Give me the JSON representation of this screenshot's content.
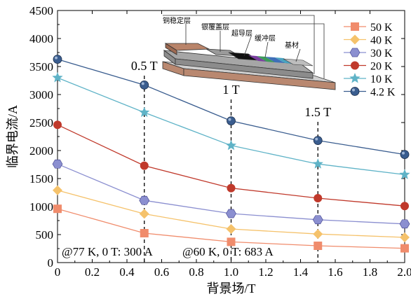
{
  "chart_data": {
    "type": "line",
    "title": "",
    "xlabel": "背景场/T",
    "ylabel": "临界电流/A",
    "xlim": [
      0,
      2.0
    ],
    "ylim": [
      0,
      4500
    ],
    "x_ticks": [
      "0",
      "0.2",
      "0.4",
      "0.6",
      "0.8",
      "1.0",
      "1.2",
      "1.4",
      "1.6",
      "1.8",
      "2.0"
    ],
    "y_ticks": [
      "0",
      "500",
      "1000",
      "1500",
      "2000",
      "2500",
      "3000",
      "3500",
      "4000",
      "4500"
    ],
    "x": [
      0,
      0.5,
      1.0,
      1.5,
      2.0
    ],
    "series": [
      {
        "name": "50 K",
        "marker": "square",
        "color": "#f08c6c",
        "values": [
          960,
          525,
          370,
          300,
          255
        ]
      },
      {
        "name": "40 K",
        "marker": "diamond",
        "color": "#f5c26b",
        "values": [
          1290,
          870,
          600,
          510,
          450
        ]
      },
      {
        "name": "30 K",
        "marker": "hexagon",
        "color": "#8b8fd0",
        "values": [
          1760,
          1110,
          875,
          765,
          690
        ]
      },
      {
        "name": "20 K",
        "marker": "circle",
        "color": "#c0392b",
        "values": [
          2460,
          1730,
          1330,
          1150,
          1010
        ]
      },
      {
        "name": "10 K",
        "marker": "star",
        "color": "#5fb3c7",
        "values": [
          3300,
          2680,
          2090,
          1760,
          1570
        ]
      },
      {
        "name": "4.2 K",
        "marker": "ball",
        "color": "#3a5d8f",
        "values": [
          3630,
          3170,
          2530,
          2180,
          1930
        ]
      }
    ],
    "field_markers": [
      {
        "x": 0.5,
        "label": "0.5 T"
      },
      {
        "x": 1.0,
        "label": "1 T"
      },
      {
        "x": 1.5,
        "label": "1.5 T"
      }
    ],
    "annotations": [
      "@77 K, 0 T: 300 A",
      "@60 K, 0 T: 683 A"
    ],
    "legend_position": "top-right",
    "grid": false
  },
  "inset": {
    "labels": [
      "铜稳定层",
      "银覆盖层",
      "超导层",
      "缓冲层",
      "基材"
    ]
  }
}
